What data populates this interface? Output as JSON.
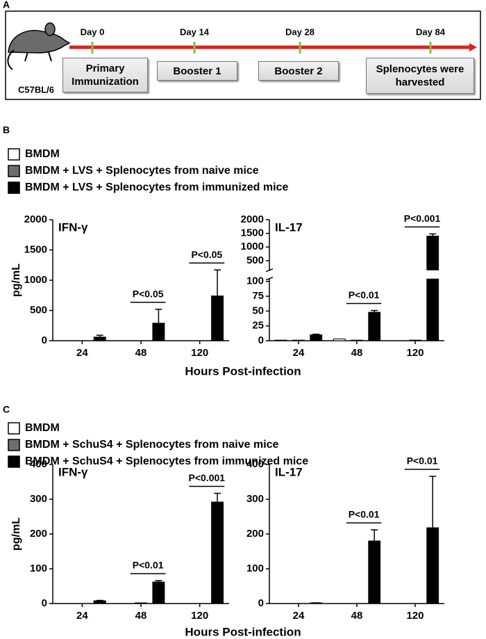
{
  "panels": [
    "A",
    "B",
    "C"
  ],
  "timeline": {
    "strain": "C57BL/6",
    "days": [
      "Day 0",
      "Day 14",
      "Day 28",
      "Day 84"
    ],
    "steps": [
      "Primary Immunization",
      "Booster 1",
      "Booster 2",
      "Splenocytes were harvested"
    ]
  },
  "chart_data": [
    {
      "type": "bar",
      "title": "IFN-γ",
      "y_label": "pg/mL",
      "x_label": "Hours Post-infection",
      "categories": [
        "24",
        "48",
        "120"
      ],
      "series": [
        {
          "name": "BMDM",
          "color": "#ffffff",
          "values": [
            0,
            0,
            0
          ]
        },
        {
          "name": "BMDM + LVS + Splenocytes from naive mice",
          "color": "#6e6e6e",
          "values": [
            0,
            0,
            0
          ]
        },
        {
          "name": "BMDM + LVS + Splenocytes from immunized mice",
          "color": "#000000",
          "values": [
            60,
            290,
            740
          ],
          "errors": [
            30,
            230,
            430
          ]
        }
      ],
      "annotations": [
        null,
        "P<0.05",
        "P<0.05"
      ],
      "ylim": [
        0,
        2000
      ],
      "yticks": [
        0,
        500,
        1000,
        1500,
        2000
      ]
    },
    {
      "type": "bar",
      "title": "IL-17",
      "categories": [
        "24",
        "48",
        "120"
      ],
      "series": [
        {
          "color": "#ffffff",
          "values": [
            1,
            3,
            0
          ]
        },
        {
          "color": "#6e6e6e",
          "values": [
            1,
            1,
            1
          ]
        },
        {
          "color": "#000000",
          "values": [
            10,
            48,
            1400
          ],
          "errors": [
            1,
            3,
            80
          ]
        }
      ],
      "annotations": [
        null,
        "P<0.01",
        "P<0.001"
      ],
      "ylim": [
        0,
        2000
      ],
      "ybreak": [
        100,
        250
      ],
      "yticks": [
        0,
        25,
        50,
        75,
        100,
        500,
        1000,
        1500,
        2000
      ]
    },
    {
      "type": "bar",
      "title": "IFN-γ",
      "y_label": "pg/mL",
      "x_label": "Hours Post-infection",
      "categories": [
        "24",
        "48",
        "120"
      ],
      "series": [
        {
          "name": "BMDM",
          "color": "#ffffff",
          "values": [
            0,
            0,
            0
          ]
        },
        {
          "name": "BMDM + SchuS4 + Splenocytes from naive mice",
          "color": "#6e6e6e",
          "values": [
            0,
            2,
            0
          ]
        },
        {
          "name": "BMDM + SchuS4 + Splenocytes from immunized mice",
          "color": "#000000",
          "values": [
            8,
            62,
            292
          ],
          "errors": [
            1,
            4,
            25
          ]
        }
      ],
      "annotations": [
        null,
        "P<0.01",
        "P<0.001"
      ],
      "ylim": [
        0,
        400
      ],
      "yticks": [
        0,
        100,
        200,
        300,
        400
      ]
    },
    {
      "type": "bar",
      "title": "IL-17",
      "categories": [
        "24",
        "48",
        "120"
      ],
      "series": [
        {
          "color": "#ffffff",
          "values": [
            0,
            0,
            0
          ]
        },
        {
          "color": "#6e6e6e",
          "values": [
            0,
            0,
            0
          ]
        },
        {
          "color": "#000000",
          "values": [
            2,
            180,
            218
          ],
          "errors": [
            0,
            32,
            148
          ]
        }
      ],
      "annotations": [
        null,
        "P<0.01",
        "P<0.01"
      ],
      "ylim": [
        0,
        400
      ],
      "yticks": [
        0,
        100,
        200,
        300,
        400
      ]
    }
  ]
}
